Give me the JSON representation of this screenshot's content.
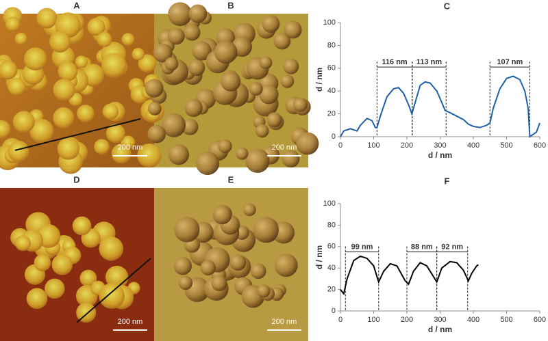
{
  "images": [
    {
      "label": "A",
      "scale_bar": "200 nm"
    },
    {
      "label": "B",
      "scale_bar": "200 nm"
    },
    {
      "label": "D",
      "scale_bar": "200 nm"
    },
    {
      "label": "E",
      "scale_bar": "200 nm"
    }
  ],
  "chart_data": [
    {
      "type": "line",
      "title": "C",
      "x_label": "d / nm",
      "y_label": "d / nm",
      "xlim": [
        0,
        600
      ],
      "xticks": [
        0,
        100,
        200,
        300,
        400,
        500,
        600
      ],
      "ylim": [
        0,
        100
      ],
      "yticks": [
        0,
        20,
        40,
        60,
        80,
        100
      ],
      "x": [
        0,
        10,
        30,
        50,
        60,
        80,
        95,
        105,
        110,
        120,
        140,
        160,
        175,
        190,
        205,
        215,
        225,
        240,
        255,
        270,
        290,
        305,
        315,
        330,
        350,
        370,
        385,
        400,
        420,
        440,
        450,
        460,
        480,
        500,
        520,
        540,
        555,
        565,
        570,
        590,
        600
      ],
      "series": [
        {
          "color": "#1f5fa6",
          "values": [
            0,
            5,
            7,
            5,
            10,
            16,
            14,
            8,
            8,
            18,
            35,
            42,
            43,
            38,
            28,
            20,
            30,
            45,
            48,
            47,
            40,
            30,
            23,
            21,
            18,
            15,
            11,
            9,
            8,
            10,
            12,
            25,
            42,
            51,
            53,
            50,
            40,
            25,
            0,
            4,
            12
          ]
        }
      ],
      "annotations": [
        {
          "label": "116 nm",
          "x": [
            110,
            216
          ],
          "y": 61
        },
        {
          "label": "113 nm",
          "x": [
            216,
            318
          ],
          "y": 61
        },
        {
          "label": "107 nm",
          "x": [
            450,
            570
          ],
          "y": 61
        }
      ]
    },
    {
      "type": "line",
      "title": "F",
      "x_label": "d / nm",
      "y_label": "d / nm",
      "xlim": [
        0,
        600
      ],
      "xticks": [
        0,
        100,
        200,
        300,
        400,
        500,
        600
      ],
      "ylim": [
        0,
        100
      ],
      "yticks": [
        0,
        20,
        40,
        60,
        80,
        100
      ],
      "x": [
        0,
        10,
        20,
        40,
        60,
        80,
        100,
        115,
        130,
        150,
        170,
        195,
        205,
        220,
        240,
        260,
        280,
        290,
        305,
        330,
        350,
        370,
        385,
        395,
        410,
        415
      ],
      "series": [
        {
          "color": "#000000",
          "values": [
            20,
            16,
            30,
            47,
            51,
            49,
            42,
            27,
            37,
            44,
            42,
            28,
            25,
            37,
            45,
            42,
            32,
            27,
            40,
            46,
            45,
            38,
            28,
            35,
            42,
            43
          ]
        }
      ],
      "annotations": [
        {
          "label": "99 nm",
          "x": [
            15,
            115
          ],
          "y": 55
        },
        {
          "label": "88 nm",
          "x": [
            200,
            290
          ],
          "y": 55
        },
        {
          "label": "92 nm",
          "x": [
            290,
            383
          ],
          "y": 55
        }
      ]
    }
  ]
}
